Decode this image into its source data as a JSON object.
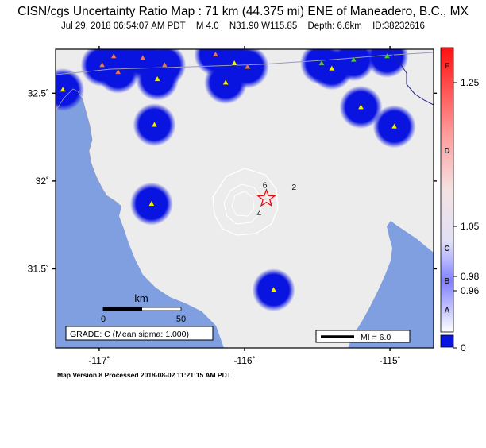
{
  "header": {
    "title": "CISN/cgs Uncertainty Ratio Map : 71 km (44.375 mi) ENE of Maneadero, B.C., MX",
    "date": "Jul 29, 2018 06:54:07 AM PDT",
    "magnitude": "M 4.0",
    "coords": "N31.90 W115.85",
    "depth": "Depth: 6.6km",
    "event_id": "ID:38232616"
  },
  "map": {
    "lon_range": [
      -117.3,
      -114.7
    ],
    "lat_range": [
      31.05,
      32.75
    ],
    "x_ticks": [
      {
        "value": -117,
        "label": "-117˚"
      },
      {
        "value": -116,
        "label": "-116˚"
      },
      {
        "value": -115,
        "label": "-115˚"
      }
    ],
    "y_ticks": [
      {
        "value": 32.5,
        "label": "32.5˚"
      },
      {
        "value": 32,
        "label": "32˚"
      },
      {
        "value": 31.5,
        "label": "31.5˚"
      }
    ],
    "epicenter": {
      "lon": -115.85,
      "lat": 31.9
    },
    "contour_labels": [
      {
        "text": "6",
        "lon": -115.86,
        "lat": 31.96
      },
      {
        "text": "2",
        "lon": -115.66,
        "lat": 31.95
      },
      {
        "text": "4",
        "lon": -115.9,
        "lat": 31.8
      }
    ],
    "stations": [
      {
        "lon": -117.25,
        "lat": 32.52,
        "color": "#f2f200",
        "halo": true
      },
      {
        "lon": -116.98,
        "lat": 32.66,
        "color": "#e87070",
        "halo": true
      },
      {
        "lon": -116.9,
        "lat": 32.71,
        "color": "#e87070",
        "halo": true
      },
      {
        "lon": -116.87,
        "lat": 32.62,
        "color": "#e87070",
        "halo": true
      },
      {
        "lon": -116.7,
        "lat": 32.7,
        "color": "#e87070",
        "halo": true
      },
      {
        "lon": -116.55,
        "lat": 32.66,
        "color": "#e87070",
        "halo": true
      },
      {
        "lon": -116.6,
        "lat": 32.58,
        "color": "#f2f200",
        "halo": true
      },
      {
        "lon": -116.2,
        "lat": 32.72,
        "color": "#e87070",
        "halo": true
      },
      {
        "lon": -116.07,
        "lat": 32.67,
        "color": "#f2f200",
        "halo": true
      },
      {
        "lon": -116.13,
        "lat": 32.56,
        "color": "#f2f200",
        "halo": true
      },
      {
        "lon": -115.98,
        "lat": 32.65,
        "color": "#e87070",
        "halo": true
      },
      {
        "lon": -115.47,
        "lat": 32.67,
        "color": "#40d040",
        "halo": true
      },
      {
        "lon": -115.4,
        "lat": 32.64,
        "color": "#f2f200",
        "halo": true
      },
      {
        "lon": -115.25,
        "lat": 32.69,
        "color": "#40d040",
        "halo": true
      },
      {
        "lon": -115.02,
        "lat": 32.71,
        "color": "#40d040",
        "halo": true
      },
      {
        "lon": -115.2,
        "lat": 32.42,
        "color": "#f2f200",
        "halo": true
      },
      {
        "lon": -114.97,
        "lat": 32.31,
        "color": "#f2f200",
        "halo": true
      },
      {
        "lon": -116.62,
        "lat": 32.32,
        "color": "#f2f200",
        "halo": true
      },
      {
        "lon": -116.64,
        "lat": 31.87,
        "color": "#f2f200",
        "halo": true
      },
      {
        "lon": -115.8,
        "lat": 31.38,
        "color": "#f2f200",
        "halo": true
      }
    ],
    "scale_bar": {
      "label": "km",
      "ticks": [
        "0",
        "50"
      ]
    },
    "grade_label": "GRADE: C (Mean sigma: 1.000)",
    "mi_label": "MI = 6.0"
  },
  "colorbar": {
    "letters": [
      "F",
      "D",
      "C",
      "B",
      "A"
    ],
    "values": [
      "1.25",
      "1.05",
      "0.98",
      "0.96",
      "0"
    ]
  },
  "footer": "Map Version 8 Processed 2018-08-02 11:21:15 AM PDT",
  "colors": {
    "water": "#7f9fe0",
    "land": "#ececec",
    "halo": "#0a14e0",
    "border": "#20208a",
    "epicenter": "#e01010"
  }
}
